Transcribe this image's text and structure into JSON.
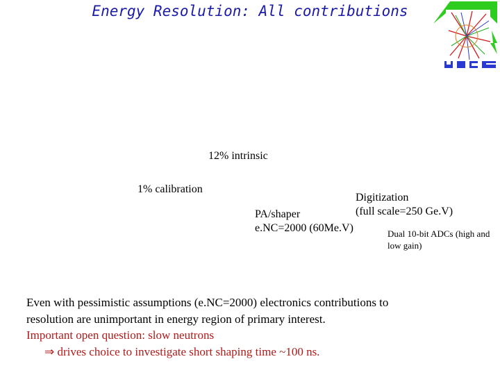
{
  "slide": {
    "title": "Energy Resolution: All contributions"
  },
  "annotations": {
    "intrinsic": "12% intrinsic",
    "calibration": "1% calibration",
    "digitization_line1": "Digitization",
    "digitization_line2": "(full scale=250 Ge.V)",
    "pa_shaper_line1": "PA/shaper",
    "pa_shaper_line2": "e.NC=2000 (60Me.V)",
    "adc_note": "Dual 10-bit ADCs (high and low gain)"
  },
  "summary": {
    "line1": "Even with pessimistic assumptions (e.NC=2000) electronics contributions to",
    "line2": "resolution are unimportant in energy region of primary interest.",
    "line3": "Important open question: slow neutrons",
    "arrow_symbol": "⇒",
    "line4": "drives choice to investigate short shaping time ~100 ns."
  },
  "logo": {
    "icon": "alice-logo-icon",
    "colors": {
      "green": "#33cc22",
      "red": "#e02020",
      "blue": "#2233cc"
    }
  }
}
